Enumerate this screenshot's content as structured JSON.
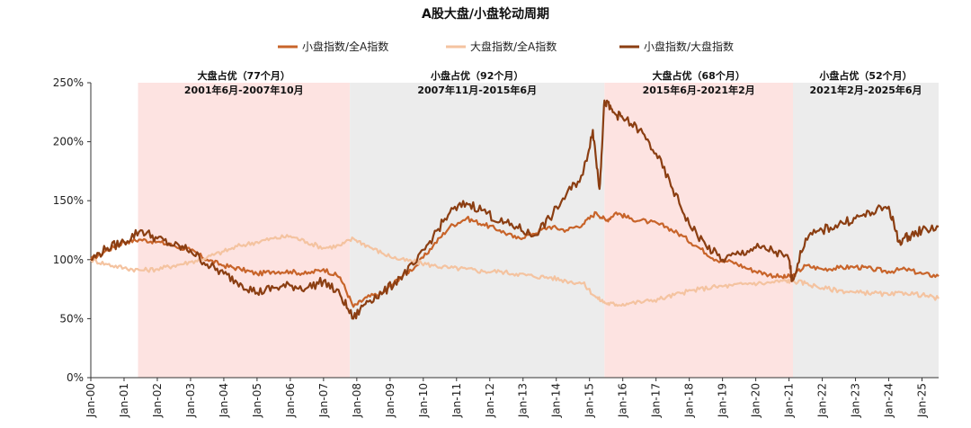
{
  "chart_data": {
    "type": "line",
    "title": "A股大盘/小盘轮动周期",
    "xlabel": "",
    "ylabel": "",
    "ylim": [
      0,
      250
    ],
    "y_ticks": [
      "0%",
      "50%",
      "100%",
      "150%",
      "200%",
      "250%"
    ],
    "x_range": [
      2000,
      2025.5
    ],
    "x_ticks": [
      "Jan-00",
      "Jan-01",
      "Jan-02",
      "Jan-03",
      "Jan-04",
      "Jan-05",
      "Jan-06",
      "Jan-07",
      "Jan-08",
      "Jan-09",
      "Jan-10",
      "Jan-11",
      "Jan-12",
      "Jan-13",
      "Jan-14",
      "Jan-15",
      "Jan-16",
      "Jan-17",
      "Jan-18",
      "Jan-19",
      "Jan-20",
      "Jan-21",
      "Jan-22",
      "Jan-23",
      "Jan-24",
      "Jan-25"
    ],
    "legend_position": "top-center",
    "regimes": [
      {
        "label": "大盘占优（77个月）",
        "period": "2001年6月-2007年10月",
        "start": 2001.42,
        "end": 2007.79,
        "color": "#fde3e1"
      },
      {
        "label": "小盘占优（92个月）",
        "period": "2007年11月-2015年6月",
        "start": 2007.79,
        "end": 2015.45,
        "color": "#ececec"
      },
      {
        "label": "大盘占优（68个月）",
        "period": "2015年6月-2021年2月",
        "start": 2015.45,
        "end": 2021.12,
        "color": "#fde3e1"
      },
      {
        "label": "小盘占优（52个月）",
        "period": "2021年2月-2025年6月",
        "start": 2021.12,
        "end": 2025.5,
        "color": "#ececec"
      }
    ],
    "series": [
      {
        "name": "小盘指数/全A指数",
        "color": "#c8642a",
        "x": [
          2000,
          2000.5,
          2001,
          2001.5,
          2002,
          2002.5,
          2003,
          2003.5,
          2004,
          2004.5,
          2005,
          2005.5,
          2006,
          2006.5,
          2007,
          2007.5,
          2007.9,
          2008.3,
          2008.8,
          2009.3,
          2009.8,
          2010.3,
          2010.8,
          2011.3,
          2011.8,
          2012.3,
          2012.8,
          2013.3,
          2013.8,
          2014.3,
          2014.8,
          2015.2,
          2015.5,
          2015.8,
          2016.2,
          2016.8,
          2017.3,
          2017.8,
          2018.3,
          2018.8,
          2019.3,
          2019.8,
          2020.3,
          2020.8,
          2021.1,
          2021.5,
          2022,
          2022.5,
          2023,
          2023.5,
          2024,
          2024.5,
          2025,
          2025.5
        ],
        "values": [
          100,
          108,
          115,
          117,
          115,
          112,
          108,
          100,
          95,
          92,
          88,
          90,
          90,
          88,
          92,
          85,
          60,
          68,
          72,
          85,
          95,
          112,
          128,
          135,
          130,
          125,
          118,
          122,
          128,
          125,
          130,
          140,
          133,
          140,
          135,
          132,
          128,
          120,
          110,
          100,
          98,
          92,
          88,
          85,
          86,
          95,
          92,
          93,
          94,
          92,
          90,
          92,
          88,
          86
        ]
      },
      {
        "name": "大盘指数/全A指数",
        "color": "#f4c3a0",
        "x": [
          2000,
          2000.5,
          2001,
          2001.5,
          2002,
          2002.5,
          2003,
          2003.5,
          2004,
          2004.5,
          2005,
          2005.5,
          2006,
          2006.5,
          2007,
          2007.5,
          2007.9,
          2008.3,
          2008.8,
          2009.3,
          2009.8,
          2010.3,
          2010.8,
          2011.3,
          2011.8,
          2012.3,
          2012.8,
          2013.3,
          2013.8,
          2014.3,
          2014.8,
          2015.2,
          2015.5,
          2015.8,
          2016.2,
          2016.8,
          2017.3,
          2017.8,
          2018.3,
          2018.8,
          2019.3,
          2019.8,
          2020.3,
          2020.8,
          2021.1,
          2021.5,
          2022,
          2022.5,
          2023,
          2023.5,
          2024,
          2024.5,
          2025,
          2025.5
        ],
        "values": [
          100,
          96,
          93,
          91,
          92,
          95,
          98,
          102,
          107,
          112,
          115,
          118,
          120,
          115,
          110,
          112,
          118,
          112,
          105,
          100,
          98,
          95,
          93,
          92,
          90,
          90,
          88,
          86,
          85,
          82,
          80,
          68,
          63,
          62,
          63,
          65,
          68,
          72,
          75,
          77,
          78,
          80,
          80,
          82,
          82,
          80,
          76,
          74,
          72,
          72,
          70,
          72,
          70,
          67
        ]
      },
      {
        "name": "小盘指数/大盘指数",
        "color": "#8b3e12",
        "x": [
          2000,
          2000.5,
          2001,
          2001.5,
          2002,
          2002.5,
          2003,
          2003.5,
          2004,
          2004.5,
          2005,
          2005.5,
          2006,
          2006.5,
          2007,
          2007.5,
          2007.9,
          2008.3,
          2008.8,
          2009.3,
          2009.8,
          2010.3,
          2010.8,
          2011.3,
          2011.8,
          2012.3,
          2012.8,
          2013.3,
          2013.8,
          2014.3,
          2014.8,
          2015.1,
          2015.3,
          2015.45,
          2015.7,
          2016,
          2016.5,
          2017,
          2017.5,
          2018,
          2018.5,
          2019,
          2019.5,
          2020,
          2020.5,
          2021,
          2021.1,
          2021.5,
          2022,
          2022.5,
          2023,
          2023.5,
          2024,
          2024.3,
          2024.6,
          2025,
          2025.5
        ],
        "values": [
          100,
          110,
          115,
          125,
          118,
          112,
          108,
          96,
          88,
          80,
          72,
          76,
          78,
          76,
          82,
          70,
          50,
          65,
          72,
          85,
          98,
          120,
          140,
          148,
          142,
          132,
          128,
          120,
          135,
          155,
          172,
          210,
          160,
          235,
          225,
          220,
          210,
          190,
          160,
          130,
          112,
          100,
          105,
          110,
          108,
          100,
          82,
          118,
          125,
          130,
          135,
          140,
          145,
          115,
          120,
          125,
          128
        ]
      }
    ]
  }
}
